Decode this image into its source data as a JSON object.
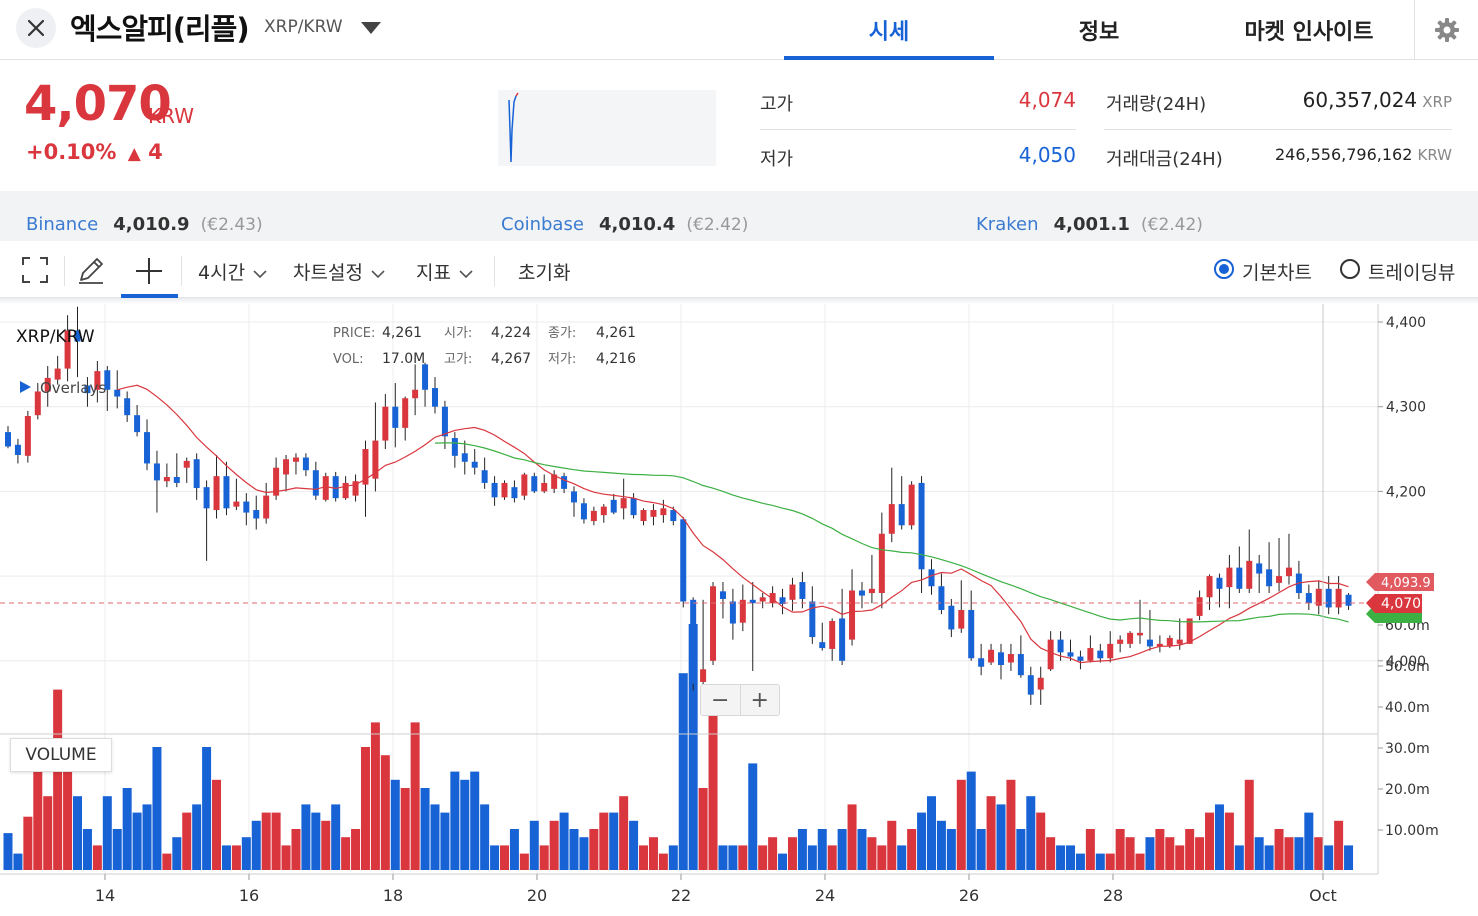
{
  "header": {
    "coin_name": "엑스알피(리플)",
    "pair": "XRP/KRW",
    "tabs": [
      {
        "label": "시세",
        "active": true
      },
      {
        "label": "정보",
        "active": false
      },
      {
        "label": "마켓 인사이트",
        "active": false
      }
    ],
    "icons": {
      "close": "close-icon",
      "dropdown": "caret-down-icon",
      "settings": "gear-icon"
    }
  },
  "summary": {
    "price": "4,070",
    "price_unit": "KRW",
    "change_pct": "+0.10%",
    "change_arrow": "▲",
    "change_abs": "4",
    "high_label": "고가",
    "high_value": "4,074",
    "low_label": "저가",
    "low_value": "4,050",
    "volume_label": "거래량(24H)",
    "volume_value": "60,357,024",
    "volume_unit": "XRP",
    "amount_label": "거래대금(24H)",
    "amount_value": "246,556,796,162",
    "amount_unit": "KRW",
    "up_color": "#d9363e",
    "down_color": "#1763d6"
  },
  "exchanges": [
    {
      "name": "Binance",
      "price": "4,010.9",
      "premium": "(€2.43)"
    },
    {
      "name": "Coinbase",
      "price": "4,010.4",
      "premium": "(€2.42)"
    },
    {
      "name": "Kraken",
      "price": "4,001.1",
      "premium": "(€2.42)"
    }
  ],
  "toolbar": {
    "interval": "4시간",
    "chart_settings": "차트설정",
    "indicators": "지표",
    "reset": "초기화",
    "basic_chart": "기본차트",
    "tradingview": "트레이딩뷰",
    "icons": {
      "fullscreen": "fullscreen-icon",
      "draw": "pencil-icon",
      "crosshair": "crosshair-icon",
      "chevron": "chevron-down-icon"
    }
  },
  "chart": {
    "symbol": "XRP/KRW",
    "overlays_label": "Overlays",
    "legend": {
      "price_key": "PRICE:",
      "price_val": "4,261",
      "open_key": "시가:",
      "open_val": "4,224",
      "close_key": "종가:",
      "close_val": "4,261",
      "vol_key": "VOL:",
      "vol_val": "17.0M",
      "high_key": "고가:",
      "high_val": "4,267",
      "low_key": "저가:",
      "low_val": "4,216"
    },
    "price_ticks": [
      "4,400",
      "4,300",
      "4,200",
      "4,000"
    ],
    "volume_ticks": [
      "60.0m",
      "50.0m",
      "40.0m",
      "30.0m",
      "20.0m",
      "10.00m"
    ],
    "x_ticks": [
      "14",
      "16",
      "18",
      "20",
      "22",
      "24",
      "26",
      "28",
      "Oct"
    ],
    "markers": {
      "ma_value": "4,093.9",
      "current_price": "4,070"
    },
    "zoom_minus": "−",
    "zoom_plus": "+",
    "volume_label": "VOLUME"
  },
  "chart_data": {
    "type": "candlestick",
    "symbol": "XRP/KRW",
    "interval": "4시간",
    "price_range": [
      3940,
      4420
    ],
    "volume_range_millions": [
      0,
      60
    ],
    "moving_average_colors": [
      "#d9363e",
      "#3cb043"
    ],
    "candles": [
      [
        4270,
        4253,
        4277,
        4251,
        9
      ],
      [
        4255,
        4243,
        4262,
        4233,
        4
      ],
      [
        4242,
        4289,
        4295,
        4234,
        13
      ],
      [
        4290,
        4318,
        4328,
        4285,
        27
      ],
      [
        4318,
        4334,
        4348,
        4300,
        18
      ],
      [
        4332,
        4345,
        4360,
        4326,
        44
      ],
      [
        4345,
        4390,
        4408,
        4330,
        28
      ],
      [
        4390,
        4377,
        4418,
        4335,
        18
      ],
      [
        4325,
        4316,
        4335,
        4300,
        10
      ],
      [
        4320,
        4342,
        4354,
        4305,
        6
      ],
      [
        4343,
        4320,
        4348,
        4295,
        18
      ],
      [
        4320,
        4312,
        4343,
        4298,
        10
      ],
      [
        4310,
        4290,
        4318,
        4282,
        20
      ],
      [
        4290,
        4270,
        4302,
        4265,
        14
      ],
      [
        4270,
        4233,
        4285,
        4225,
        16
      ],
      [
        4233,
        4213,
        4248,
        4175,
        30
      ],
      [
        4212,
        4217,
        4233,
        4205,
        4
      ],
      [
        4217,
        4210,
        4245,
        4205,
        8
      ],
      [
        4228,
        4236,
        4240,
        4210,
        14
      ],
      [
        4238,
        4204,
        4245,
        4190,
        16
      ],
      [
        4205,
        4180,
        4213,
        4118,
        30
      ],
      [
        4178,
        4218,
        4243,
        4168,
        22
      ],
      [
        4218,
        4180,
        4235,
        4172,
        6
      ],
      [
        4182,
        4188,
        4215,
        4178,
        6
      ],
      [
        4188,
        4175,
        4198,
        4160,
        8
      ],
      [
        4178,
        4168,
        4195,
        4155,
        12
      ],
      [
        4168,
        4195,
        4210,
        4162,
        14
      ],
      [
        4195,
        4228,
        4240,
        4190,
        14
      ],
      [
        4220,
        4238,
        4243,
        4200,
        6
      ],
      [
        4235,
        4240,
        4245,
        4220,
        10
      ],
      [
        4240,
        4225,
        4245,
        4218,
        16
      ],
      [
        4225,
        4195,
        4235,
        4190,
        14
      ],
      [
        4190,
        4218,
        4222,
        4188,
        12
      ],
      [
        4218,
        4192,
        4223,
        4188,
        16
      ],
      [
        4192,
        4210,
        4218,
        4190,
        8
      ],
      [
        4195,
        4212,
        4220,
        4188,
        10
      ],
      [
        4208,
        4250,
        4260,
        4170,
        30
      ],
      [
        4215,
        4260,
        4305,
        4200,
        36
      ],
      [
        4260,
        4300,
        4315,
        4250,
        28
      ],
      [
        4300,
        4275,
        4328,
        4252,
        22
      ],
      [
        4275,
        4310,
        4312,
        4260,
        20
      ],
      [
        4310,
        4320,
        4350,
        4290,
        36
      ],
      [
        4350,
        4320,
        4352,
        4300,
        20
      ],
      [
        4322,
        4300,
        4335,
        4292,
        16
      ],
      [
        4300,
        4265,
        4307,
        4250,
        14
      ],
      [
        4263,
        4242,
        4270,
        4228,
        24
      ],
      [
        4245,
        4235,
        4260,
        4220,
        22
      ],
      [
        4235,
        4228,
        4250,
        4220,
        24
      ],
      [
        4225,
        4210,
        4240,
        4203,
        16
      ],
      [
        4210,
        4193,
        4218,
        4183,
        6
      ],
      [
        4193,
        4210,
        4213,
        4190,
        6
      ],
      [
        4205,
        4192,
        4213,
        4187,
        10
      ],
      [
        4195,
        4220,
        4222,
        4190,
        4
      ],
      [
        4218,
        4200,
        4222,
        4198,
        12
      ],
      [
        4200,
        4210,
        4220,
        4198,
        6
      ],
      [
        4203,
        4220,
        4225,
        4198,
        12
      ],
      [
        4218,
        4203,
        4222,
        4198,
        14
      ],
      [
        4200,
        4187,
        4206,
        4170,
        10
      ],
      [
        4186,
        4167,
        4192,
        4162,
        8
      ],
      [
        4165,
        4177,
        4182,
        4160,
        10
      ],
      [
        4172,
        4182,
        4185,
        4163,
        14
      ],
      [
        4190,
        4175,
        4197,
        4173,
        14
      ],
      [
        4180,
        4192,
        4215,
        4167,
        18
      ],
      [
        4192,
        4172,
        4198,
        4168,
        12
      ],
      [
        4165,
        4178,
        4180,
        4160,
        6
      ],
      [
        4170,
        4178,
        4185,
        4160,
        8
      ],
      [
        4172,
        4180,
        4190,
        4163,
        4
      ],
      [
        4178,
        4165,
        4182,
        4160,
        6
      ],
      [
        4167,
        4070,
        4170,
        4063,
        48
      ],
      [
        4072,
        3973,
        4075,
        3965,
        60
      ],
      [
        3975,
        3990,
        4072,
        3968,
        20
      ],
      [
        4000,
        4088,
        4093,
        3995,
        44
      ],
      [
        4082,
        4073,
        4093,
        4050,
        6
      ],
      [
        4070,
        4044,
        4085,
        4025,
        6
      ],
      [
        4045,
        4072,
        4090,
        4035,
        6
      ],
      [
        4072,
        4068,
        4093,
        3988,
        26
      ],
      [
        4070,
        4075,
        4080,
        4062,
        6
      ],
      [
        4068,
        4080,
        4088,
        4063,
        8
      ],
      [
        4075,
        4067,
        4085,
        4055,
        4
      ],
      [
        4072,
        4090,
        4098,
        4059,
        8
      ],
      [
        4093,
        4073,
        4105,
        4062,
        10
      ],
      [
        4070,
        4028,
        4088,
        4020,
        6
      ],
      [
        4022,
        4015,
        4045,
        4012,
        10
      ],
      [
        4014,
        4047,
        4050,
        4000,
        6
      ],
      [
        4050,
        4000,
        4085,
        3995,
        10
      ],
      [
        4025,
        4083,
        4108,
        4018,
        16
      ],
      [
        4083,
        4077,
        4093,
        4062,
        10
      ],
      [
        4080,
        4085,
        4125,
        4068,
        8
      ],
      [
        4080,
        4150,
        4175,
        4062,
        6
      ],
      [
        4150,
        4185,
        4228,
        4140,
        12
      ],
      [
        4185,
        4160,
        4218,
        4155,
        6
      ],
      [
        4160,
        4208,
        4212,
        4155,
        10
      ],
      [
        4210,
        4108,
        4218,
        4080,
        14
      ],
      [
        4108,
        4088,
        4120,
        4078,
        18
      ],
      [
        4088,
        4060,
        4103,
        4055,
        12
      ],
      [
        4065,
        4037,
        4073,
        4028,
        10
      ],
      [
        4038,
        4060,
        4095,
        4033,
        22
      ],
      [
        4060,
        4003,
        4083,
        4000,
        24
      ],
      [
        4003,
        3993,
        4020,
        3983,
        10
      ],
      [
        3998,
        4013,
        4020,
        3995,
        18
      ],
      [
        4010,
        3995,
        4020,
        3978,
        16
      ],
      [
        3998,
        4008,
        4020,
        3988,
        22
      ],
      [
        4008,
        3983,
        4030,
        3980,
        10
      ],
      [
        3983,
        3960,
        3993,
        3948,
        18
      ],
      [
        3966,
        3980,
        3993,
        3948,
        14
      ],
      [
        3990,
        4025,
        4035,
        3988,
        8
      ],
      [
        4025,
        4010,
        4035,
        4000,
        6
      ],
      [
        4010,
        4005,
        4025,
        4000,
        6
      ],
      [
        4005,
        4000,
        4012,
        3990,
        4
      ],
      [
        4000,
        4015,
        4030,
        3998,
        10
      ],
      [
        4012,
        4003,
        4020,
        3998,
        4
      ],
      [
        4003,
        4020,
        4035,
        3998,
        4
      ],
      [
        4020,
        4025,
        4030,
        4010,
        10
      ],
      [
        4020,
        4033,
        4035,
        4015,
        8
      ],
      [
        4030,
        4033,
        4072,
        4020,
        4
      ],
      [
        4025,
        4017,
        4060,
        4012,
        8
      ],
      [
        4017,
        4020,
        4030,
        4010,
        10
      ],
      [
        4018,
        4027,
        4030,
        4015,
        8
      ],
      [
        4020,
        4025,
        4050,
        4013,
        6
      ],
      [
        4020,
        4050,
        4050,
        4020,
        10
      ],
      [
        4053,
        4075,
        4083,
        4048,
        8
      ],
      [
        4075,
        4100,
        4102,
        4060,
        14
      ],
      [
        4098,
        4085,
        4103,
        4063,
        16
      ],
      [
        4087,
        4110,
        4125,
        4062,
        14
      ],
      [
        4110,
        4085,
        4135,
        4080,
        6
      ],
      [
        4085,
        4118,
        4155,
        4080,
        22
      ],
      [
        4115,
        4103,
        4125,
        4080,
        8
      ],
      [
        4108,
        4088,
        4140,
        4080,
        6
      ],
      [
        4092,
        4100,
        4145,
        4082,
        10
      ],
      [
        4100,
        4110,
        4150,
        4090,
        8
      ],
      [
        4103,
        4080,
        4118,
        4073,
        8
      ],
      [
        4080,
        4068,
        4090,
        4060,
        14
      ],
      [
        4065,
        4085,
        4095,
        4055,
        8
      ],
      [
        4085,
        4063,
        4100,
        4055,
        6
      ],
      [
        4063,
        4085,
        4100,
        4055,
        12
      ],
      [
        4078,
        4065,
        4080,
        4060,
        6
      ]
    ]
  }
}
